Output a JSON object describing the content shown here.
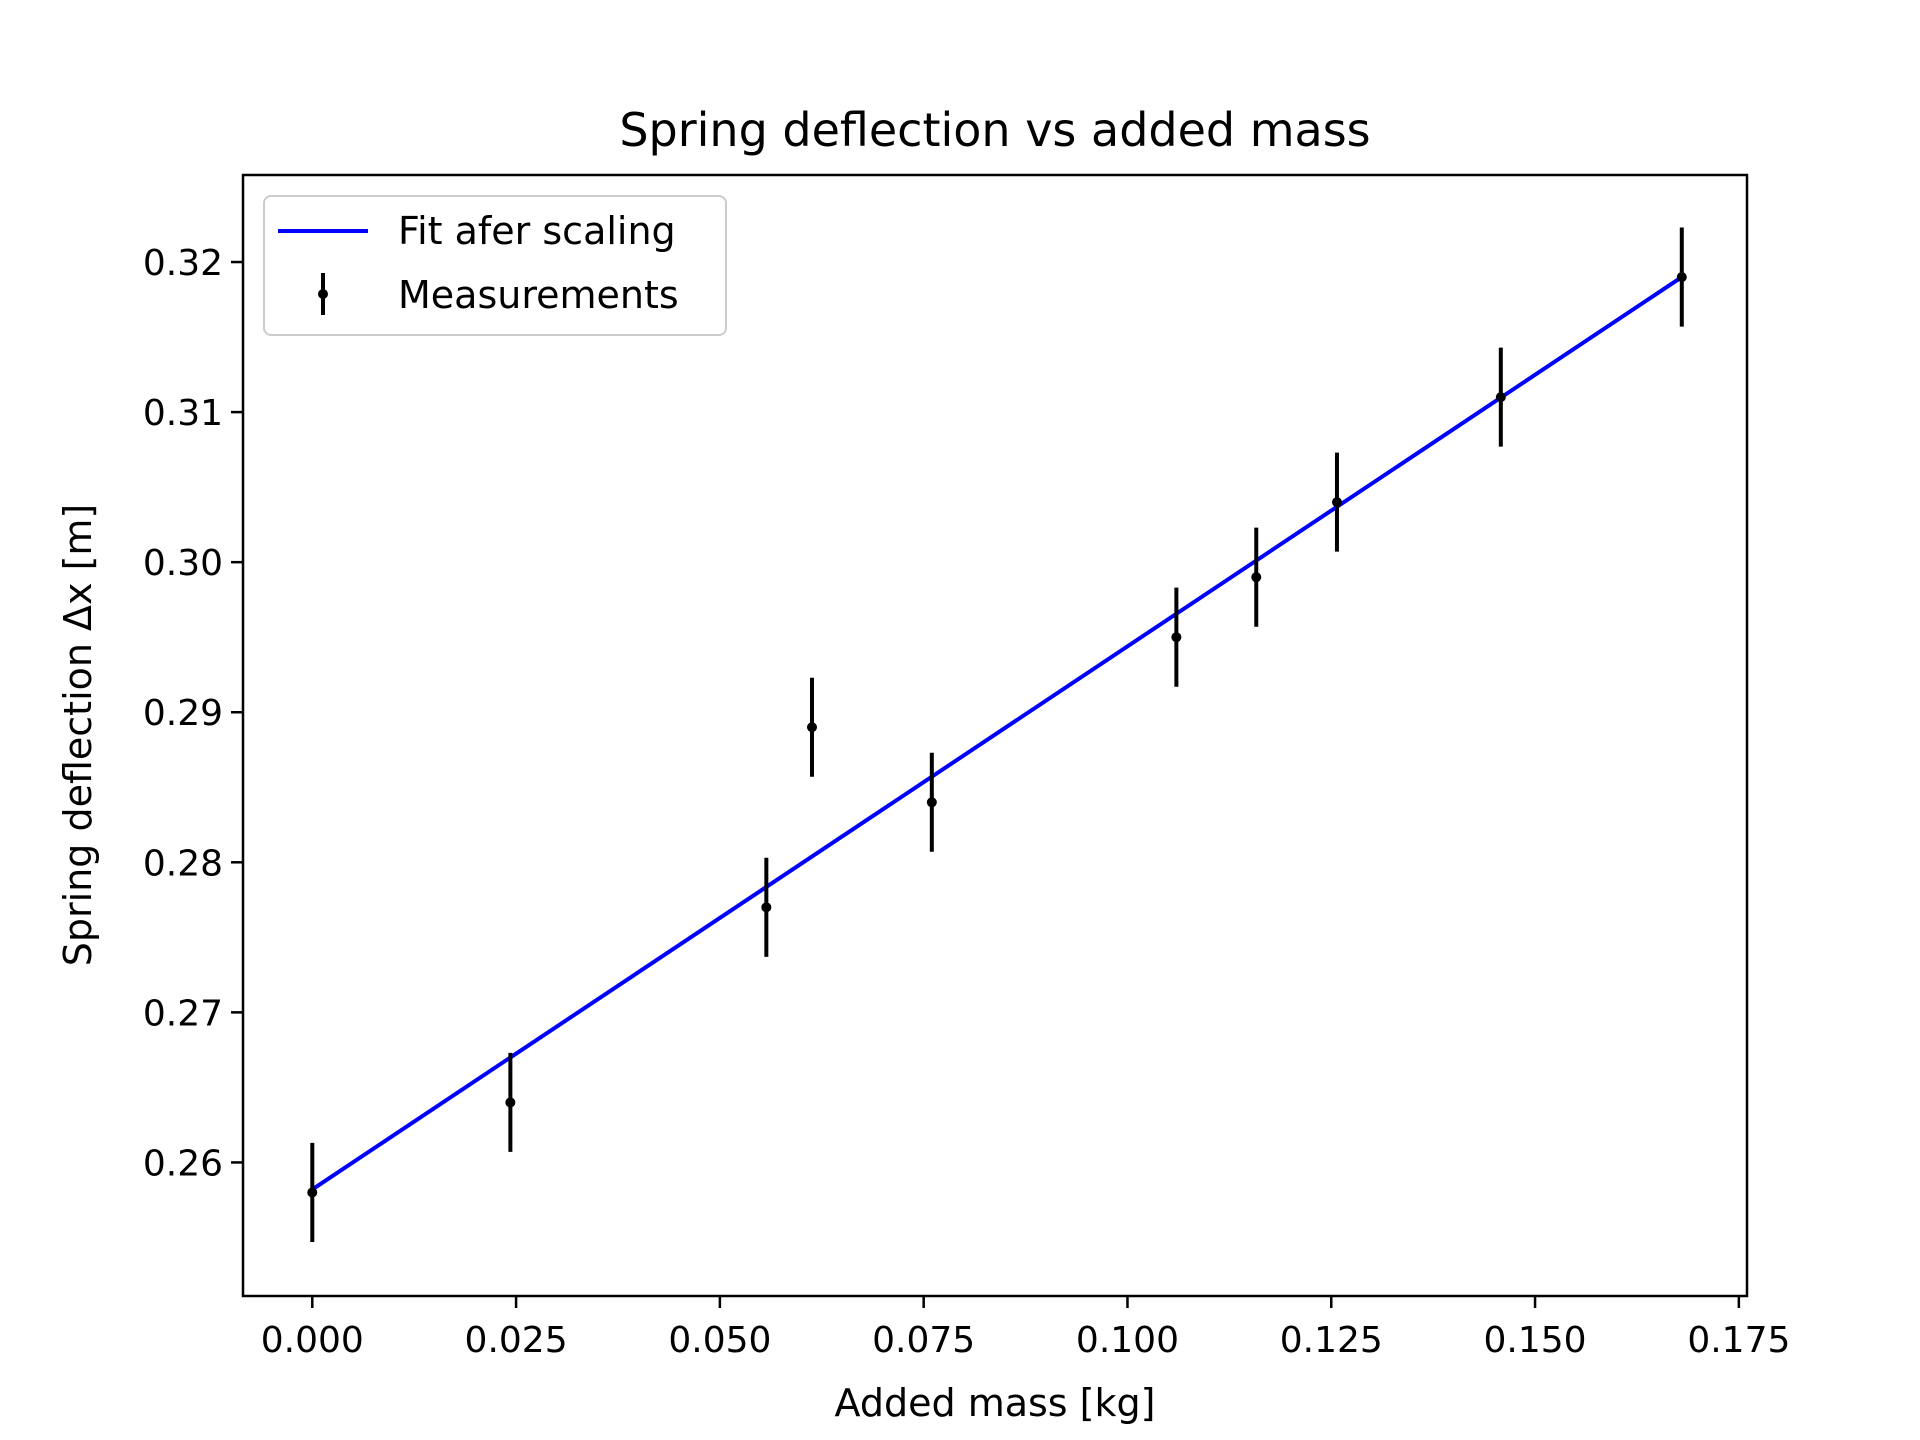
{
  "chart_data": {
    "type": "scatter",
    "title": "Spring deflection vs added mass",
    "xlabel": "Added mass [kg]",
    "ylabel": "Spring deflection Δx [m]",
    "xlim": [
      -0.0085,
      0.176
    ],
    "ylim": [
      0.2511,
      0.3258
    ],
    "xticks": [
      0.0,
      0.025,
      0.05,
      0.075,
      0.1,
      0.125,
      0.15,
      0.175
    ],
    "xtick_labels": [
      "0.000",
      "0.025",
      "0.050",
      "0.075",
      "0.100",
      "0.125",
      "0.150",
      "0.175"
    ],
    "yticks": [
      0.26,
      0.27,
      0.28,
      0.29,
      0.3,
      0.31,
      0.32
    ],
    "ytick_labels": [
      "0.26",
      "0.27",
      "0.28",
      "0.29",
      "0.30",
      "0.31",
      "0.32"
    ],
    "grid": false,
    "legend_position": "top-left",
    "series": [
      {
        "name": "Fit afer scaling",
        "kind": "line",
        "color": "#0000ff",
        "x": [
          0.0,
          0.168
        ],
        "y": [
          0.2582,
          0.319
        ]
      },
      {
        "name": "Measurements",
        "kind": "errorbar",
        "color": "#000000",
        "x": [
          0.0,
          0.0243,
          0.0557,
          0.0613,
          0.076,
          0.106,
          0.1158,
          0.1257,
          0.1458,
          0.168
        ],
        "y": [
          0.258,
          0.264,
          0.277,
          0.289,
          0.284,
          0.295,
          0.299,
          0.304,
          0.311,
          0.319
        ],
        "yerr": [
          0.0033,
          0.0033,
          0.0033,
          0.0033,
          0.0033,
          0.0033,
          0.0033,
          0.0033,
          0.0033,
          0.0033
        ]
      }
    ]
  }
}
